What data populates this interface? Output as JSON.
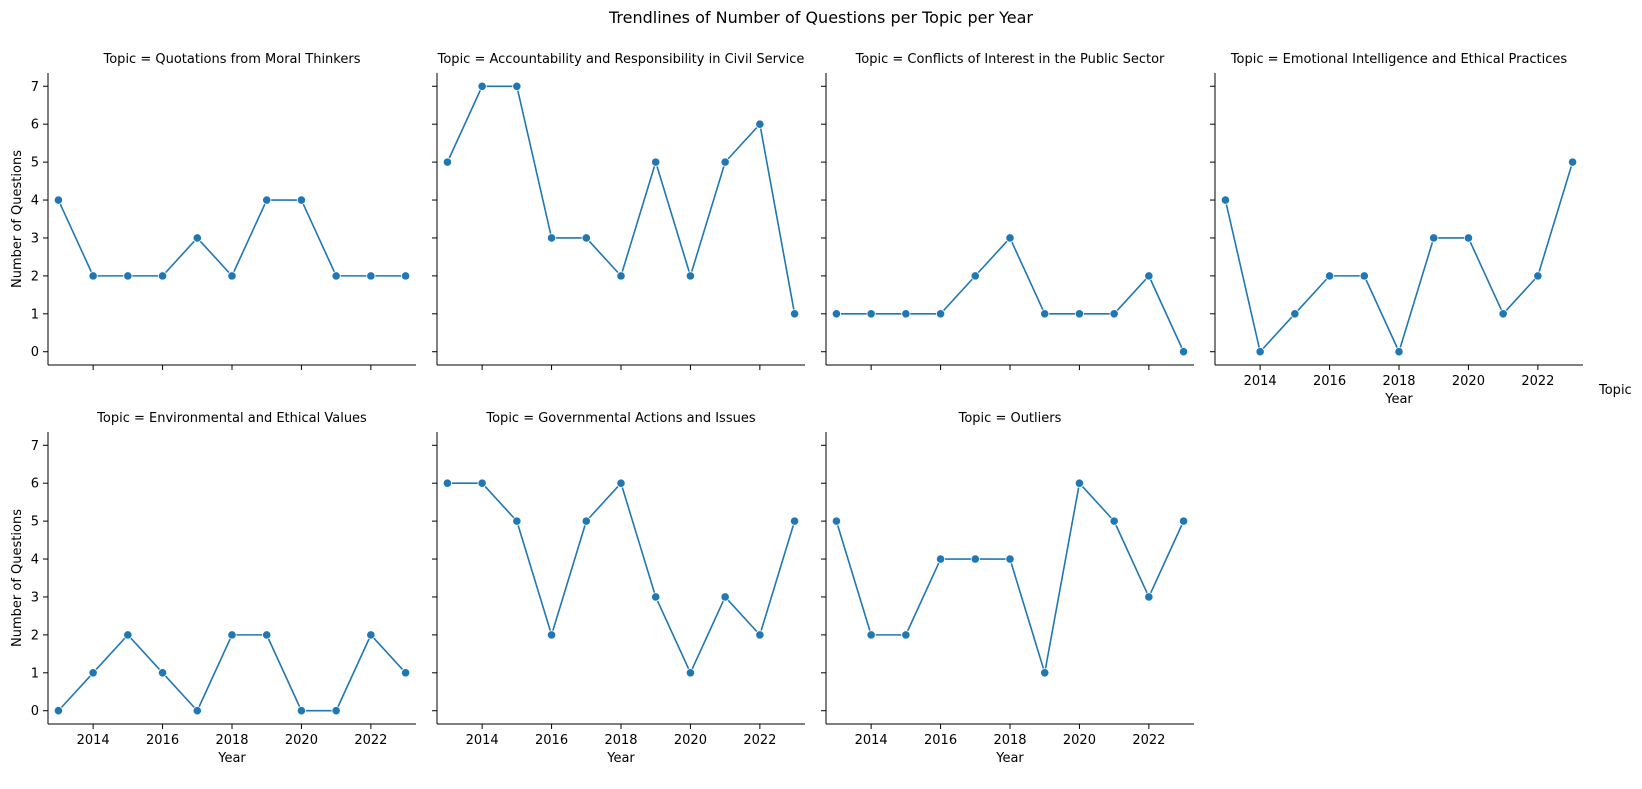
{
  "figure": {
    "title": "Trendlines of Number of Questions per Topic per Year",
    "legend_title": "Topic",
    "line_color": "#1f77b4"
  },
  "chart_data": {
    "type": "line",
    "title": "Trendlines of Number of Questions per Topic per Year",
    "xlabel": "Year",
    "ylabel": "Number of Questions",
    "x": [
      2013,
      2014,
      2015,
      2016,
      2017,
      2018,
      2019,
      2020,
      2021,
      2022,
      2023
    ],
    "xlim": [
      2012.7,
      2023.3
    ],
    "ylim": [
      -0.35,
      7.35
    ],
    "xticks": [
      2014,
      2016,
      2018,
      2020,
      2022
    ],
    "yticks": [
      0,
      1,
      2,
      3,
      4,
      5,
      6,
      7
    ],
    "marker": "circle",
    "grid": false,
    "facets": [
      {
        "title": "Topic =  Quotations from Moral Thinkers",
        "values": [
          4,
          2,
          2,
          2,
          3,
          2,
          4,
          4,
          2,
          2,
          2
        ]
      },
      {
        "title": "Topic = Accountability and Responsibility in Civil Service",
        "values": [
          5,
          7,
          7,
          3,
          3,
          2,
          5,
          2,
          5,
          6,
          1
        ]
      },
      {
        "title": "Topic = Conflicts of Interest in the Public Sector",
        "values": [
          1,
          1,
          1,
          1,
          2,
          3,
          1,
          1,
          1,
          2,
          0
        ]
      },
      {
        "title": "Topic = Emotional Intelligence and Ethical Practices",
        "values": [
          4,
          0,
          1,
          2,
          2,
          0,
          3,
          3,
          1,
          2,
          5
        ]
      },
      {
        "title": "Topic = Environmental and Ethical Values",
        "values": [
          0,
          1,
          2,
          1,
          0,
          2,
          2,
          0,
          0,
          2,
          1
        ]
      },
      {
        "title": "Topic = Governmental Actions and Issues",
        "values": [
          6,
          6,
          5,
          2,
          5,
          6,
          3,
          1,
          3,
          2,
          5
        ]
      },
      {
        "title": "Topic = Outliers",
        "values": [
          5,
          2,
          2,
          4,
          4,
          4,
          1,
          6,
          5,
          3,
          5
        ]
      }
    ]
  }
}
